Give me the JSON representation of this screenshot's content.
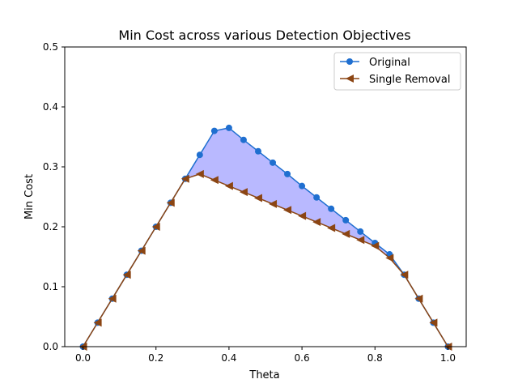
{
  "chart_data": {
    "type": "line",
    "title": "Min Cost across various Detection Objectives",
    "xlabel": "Theta",
    "ylabel": "Min Cost",
    "xlim": [
      -0.05,
      1.05
    ],
    "ylim": [
      0.0,
      0.5
    ],
    "xticks": [
      0.0,
      0.2,
      0.4,
      0.6,
      0.8,
      1.0
    ],
    "xtick_labels": [
      "0.0",
      "0.2",
      "0.4",
      "0.6",
      "0.8",
      "1.0"
    ],
    "yticks": [
      0.0,
      0.1,
      0.2,
      0.3,
      0.4,
      0.5
    ],
    "ytick_labels": [
      "0.0",
      "0.1",
      "0.2",
      "0.3",
      "0.4",
      "0.5"
    ],
    "grid": false,
    "legend_position": "top-right",
    "x": [
      0.0,
      0.04,
      0.08,
      0.12,
      0.16,
      0.2,
      0.24,
      0.28,
      0.32,
      0.36,
      0.4,
      0.44,
      0.48,
      0.52,
      0.56,
      0.6,
      0.64,
      0.68,
      0.72,
      0.76,
      0.8,
      0.84,
      0.88,
      0.92,
      0.96,
      1.0
    ],
    "series": [
      {
        "name": "Original",
        "color": "#1f6fd0",
        "marker": "circle",
        "values": [
          0.0,
          0.04,
          0.08,
          0.12,
          0.16,
          0.2,
          0.24,
          0.28,
          0.32,
          0.36,
          0.365,
          0.345,
          0.326,
          0.307,
          0.288,
          0.268,
          0.249,
          0.23,
          0.211,
          0.192,
          0.173,
          0.154,
          0.12,
          0.08,
          0.04,
          0.0
        ]
      },
      {
        "name": "Single Removal",
        "color": "#8b4513",
        "marker": "triangle-left",
        "values": [
          0.0,
          0.04,
          0.08,
          0.12,
          0.16,
          0.2,
          0.24,
          0.28,
          0.288,
          0.278,
          0.268,
          0.258,
          0.248,
          0.238,
          0.228,
          0.218,
          0.208,
          0.198,
          0.188,
          0.178,
          0.168,
          0.148,
          0.12,
          0.08,
          0.04,
          0.0
        ]
      }
    ],
    "fill_between": {
      "color": "#b9b9ff"
    }
  }
}
